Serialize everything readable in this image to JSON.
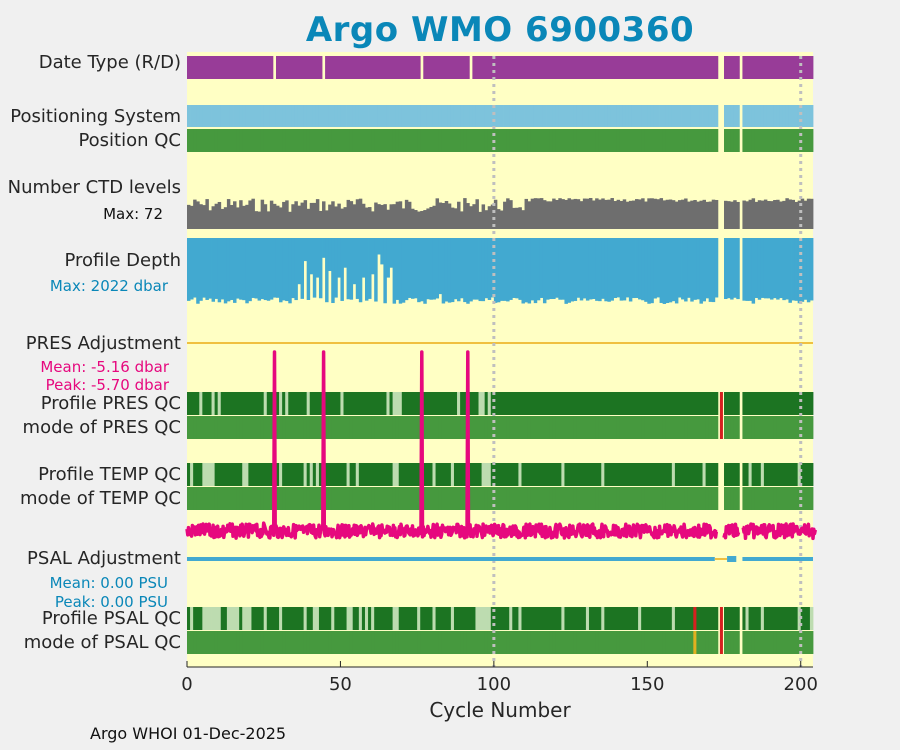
{
  "title": "Argo WMO 6900360",
  "footer": "Argo WHOI 01-Dec-2025",
  "colors": {
    "background": "#ffffc4",
    "figure_bg": "#f0f0f0",
    "title": "#0a87b8",
    "date_type": "#983c98",
    "positioning": "#7dc3dc",
    "qc_good": "#1c7422",
    "qc_mode": "#46993e",
    "qc_light": "#bddcb0",
    "qc_bad": "#d62020",
    "qc_probable": "#e0b020",
    "ctd": "#6e6e6e",
    "depth": "#42a9d0",
    "pres_adj": "#e6087e",
    "psal_adj": "#42a9d0",
    "pres_line": "#f0c040",
    "grid": "#bfbfbf"
  },
  "labels": {
    "date_type": "Date Type (R/D)",
    "positioning": "Positioning System",
    "position_qc": "Position QC",
    "ctd_levels": "Number CTD levels",
    "ctd_max": "Max: 72",
    "profile_depth": "Profile Depth",
    "depth_max": "Max: 2022 dbar",
    "pres_adj": "PRES Adjustment",
    "pres_mean": "Mean: -5.16 dbar",
    "pres_peak": "Peak: -5.70 dbar",
    "pres_qc": "Profile PRES QC",
    "pres_mode": "mode of PRES QC",
    "temp_qc": "Profile TEMP QC",
    "temp_mode": "mode of TEMP QC",
    "psal_adj": "PSAL Adjustment",
    "psal_mean": "Mean: 0.00 PSU",
    "psal_peak": "Peak: 0.00 PSU",
    "psal_qc": "Profile PSAL QC",
    "psal_mode": "mode of PSAL QC"
  },
  "chart_data": {
    "type": "heatmap",
    "xlabel": "Cycle Number",
    "xlim": [
      0,
      204
    ],
    "xticks": [
      0,
      50,
      100,
      150,
      200
    ],
    "grid_x": [
      100,
      200
    ],
    "missing_cycles": [
      173,
      174,
      180
    ],
    "date_type_gaps": [
      28,
      44,
      76,
      92
    ],
    "ctd_max": 72,
    "depth_max_dbar": 2022,
    "depth_dips": [
      {
        "cycle": 36,
        "depth_frac": 0.7
      },
      {
        "cycle": 38,
        "depth_frac": 0.35
      },
      {
        "cycle": 40,
        "depth_frac": 0.55
      },
      {
        "cycle": 42,
        "depth_frac": 0.6
      },
      {
        "cycle": 44,
        "depth_frac": 0.3
      },
      {
        "cycle": 46,
        "depth_frac": 0.5
      },
      {
        "cycle": 49,
        "depth_frac": 0.6
      },
      {
        "cycle": 51,
        "depth_frac": 0.45
      },
      {
        "cycle": 54,
        "depth_frac": 0.7
      },
      {
        "cycle": 57,
        "depth_frac": 0.6
      },
      {
        "cycle": 60,
        "depth_frac": 0.55
      },
      {
        "cycle": 62,
        "depth_frac": 0.25
      },
      {
        "cycle": 63,
        "depth_frac": 0.4
      },
      {
        "cycle": 65,
        "depth_frac": 0.6
      },
      {
        "cycle": 66,
        "depth_frac": 0.45
      },
      {
        "cycle": 82,
        "depth_frac": 0.85
      },
      {
        "cycle": 99,
        "depth_frac": 0.9
      }
    ],
    "pres_adj_mean_dbar": -5.16,
    "pres_adj_peak_dbar": -5.7,
    "pres_spikes": [
      28,
      44,
      76,
      91
    ],
    "psal_adj_mean_psu": 0.0,
    "psal_adj_peak_psu": 0.0,
    "pres_qc_light": [
      4,
      8,
      10,
      25,
      30,
      32,
      39,
      50,
      65,
      67,
      68,
      69,
      88,
      95,
      96,
      98
    ],
    "temp_qc_light": [
      1,
      5,
      6,
      7,
      8,
      18,
      19,
      30,
      38,
      40,
      42,
      52,
      55,
      67,
      68,
      80,
      86,
      96,
      97,
      98,
      108,
      122,
      135,
      158,
      168,
      183,
      187,
      199
    ],
    "psal_qc_light": [
      1,
      5,
      6,
      7,
      8,
      9,
      10,
      13,
      14,
      15,
      16,
      18,
      19,
      20,
      25,
      30,
      38,
      41,
      42,
      47,
      52,
      53,
      56,
      58,
      60,
      67,
      68,
      75,
      80,
      86,
      94,
      95,
      96,
      97,
      98,
      105,
      108,
      122,
      130,
      135,
      147,
      158,
      182,
      187,
      199,
      203
    ],
    "psal_qc_bad": [
      165
    ],
    "psal_mode_probable": [
      165
    ]
  }
}
